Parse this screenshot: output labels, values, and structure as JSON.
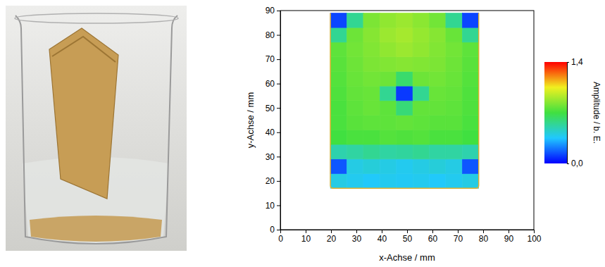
{
  "chart_data": {
    "type": "heatmap",
    "x_label": "x-Achse / mm",
    "y_label": "y-Achse / mm",
    "xlim": [
      0,
      100
    ],
    "xticks": [
      0,
      10,
      20,
      30,
      40,
      50,
      60,
      70,
      80,
      90,
      100
    ],
    "ylim": [
      0,
      90
    ],
    "yticks": [
      0,
      10,
      20,
      30,
      40,
      50,
      60,
      70,
      80,
      90
    ],
    "x": [
      23,
      29.5,
      36,
      42.5,
      49,
      55.5,
      62,
      68.5,
      75
    ],
    "y": [
      20,
      26,
      32,
      38,
      44,
      50,
      56,
      62,
      68,
      74,
      80,
      86
    ],
    "z": [
      [
        0.4,
        0.38,
        0.36,
        0.38,
        0.37,
        0.38,
        0.36,
        0.38,
        0.4
      ],
      [
        0.15,
        0.4,
        0.42,
        0.4,
        0.38,
        0.4,
        0.42,
        0.4,
        0.15
      ],
      [
        0.5,
        0.52,
        0.55,
        0.52,
        0.53,
        0.55,
        0.52,
        0.52,
        0.5
      ],
      [
        0.7,
        0.72,
        0.72,
        0.74,
        0.73,
        0.74,
        0.72,
        0.72,
        0.7
      ],
      [
        0.72,
        0.75,
        0.76,
        0.76,
        0.77,
        0.76,
        0.75,
        0.75,
        0.72
      ],
      [
        0.72,
        0.76,
        0.78,
        0.76,
        0.6,
        0.77,
        0.77,
        0.76,
        0.73
      ],
      [
        0.73,
        0.77,
        0.78,
        0.55,
        0.1,
        0.55,
        0.78,
        0.77,
        0.73
      ],
      [
        0.74,
        0.78,
        0.8,
        0.79,
        0.62,
        0.79,
        0.8,
        0.78,
        0.74
      ],
      [
        0.75,
        0.79,
        0.82,
        0.83,
        0.84,
        0.83,
        0.82,
        0.79,
        0.75
      ],
      [
        0.76,
        0.8,
        0.83,
        0.86,
        0.88,
        0.86,
        0.83,
        0.8,
        0.76
      ],
      [
        0.55,
        0.79,
        0.84,
        0.88,
        0.9,
        0.87,
        0.84,
        0.78,
        0.55
      ],
      [
        0.12,
        0.55,
        0.82,
        0.86,
        0.88,
        0.85,
        0.8,
        0.55,
        0.12
      ]
    ],
    "colorbar": {
      "label": "Amplitude / b. E.",
      "range": [
        0,
        1.4
      ],
      "ticks": [
        {
          "value": 0,
          "label": "0,0"
        },
        {
          "value": 1.4,
          "label": "1,4"
        }
      ],
      "colors": [
        "#0000ff",
        "#20c8ff",
        "#40e040",
        "#f0f020",
        "#ff0000"
      ]
    }
  }
}
